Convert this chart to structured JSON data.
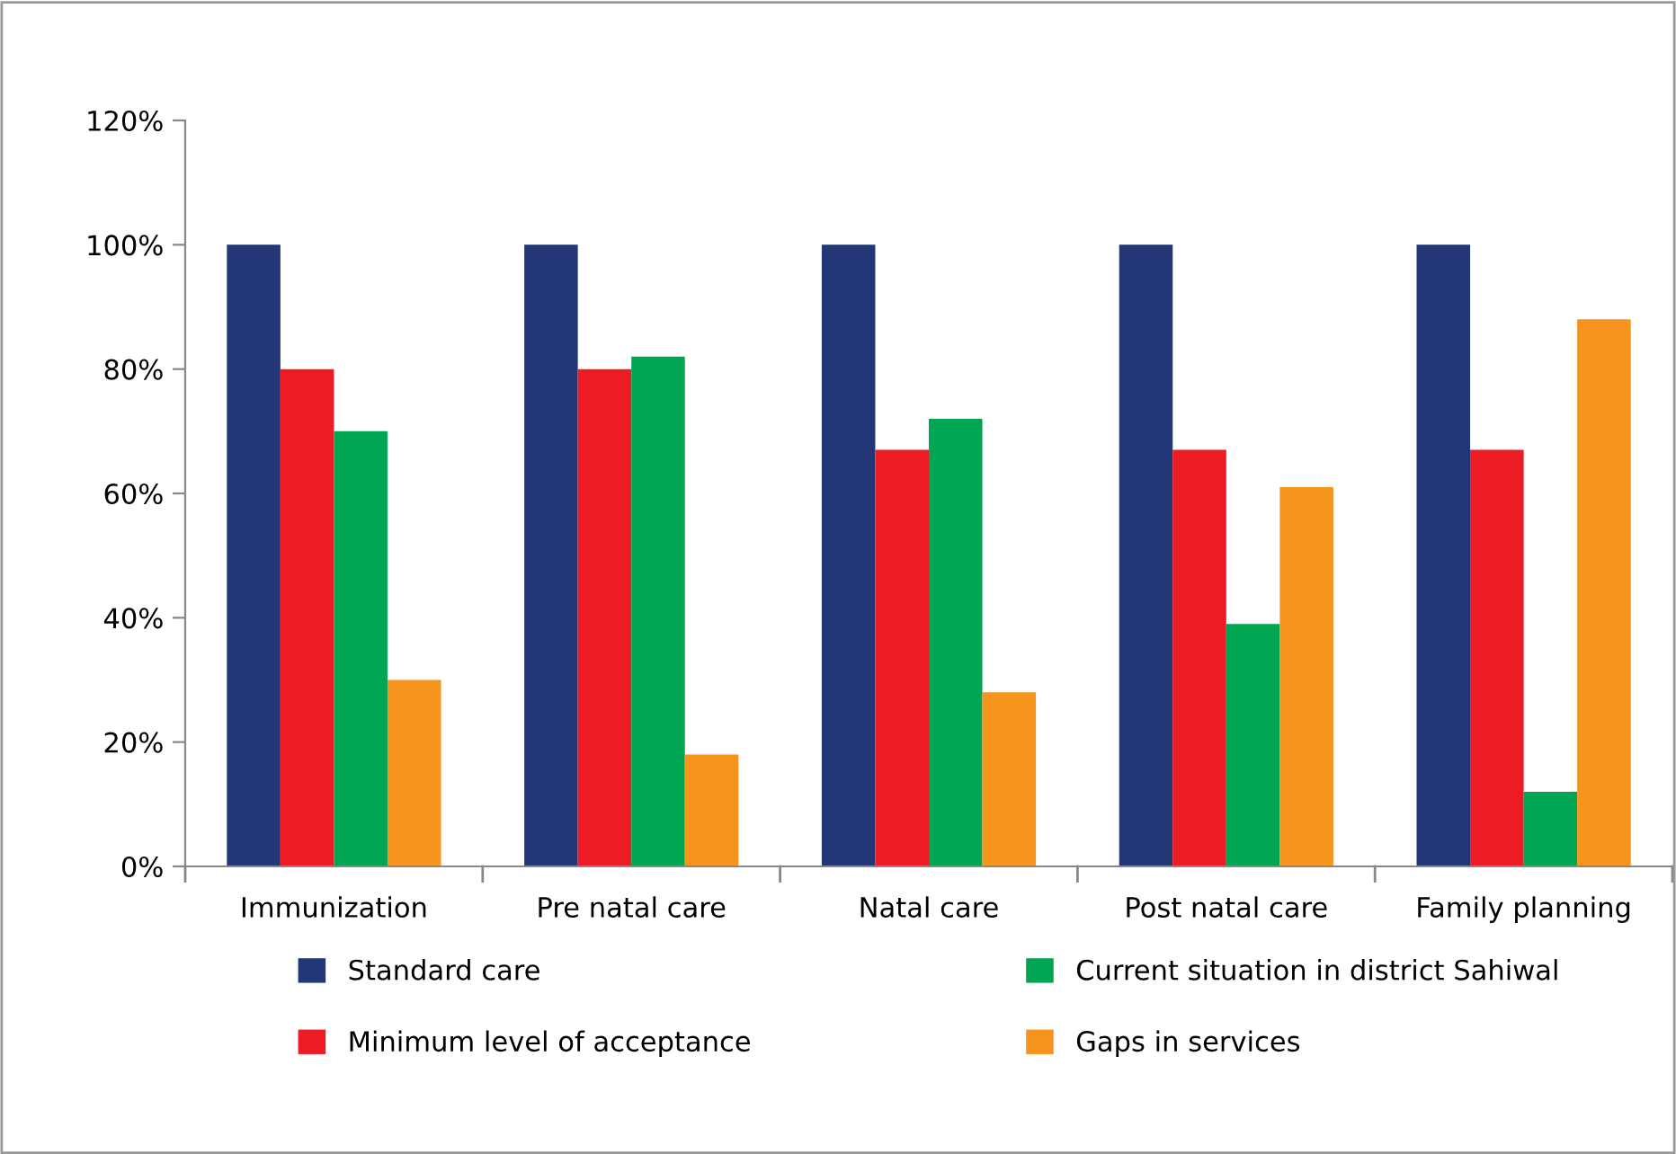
{
  "chart_data": {
    "type": "bar",
    "categories": [
      "Immunization",
      "Pre natal care",
      "Natal care",
      "Post natal care",
      "Family planning"
    ],
    "series": [
      {
        "name": "Standard care",
        "color": "#233777",
        "values": [
          100,
          100,
          100,
          100,
          100
        ]
      },
      {
        "name": "Minimum level of acceptance",
        "color": "#ed1c24",
        "values": [
          80,
          80,
          67,
          67,
          67
        ]
      },
      {
        "name": "Current situation in district Sahiwal",
        "color": "#00a651",
        "values": [
          70,
          82,
          72,
          39,
          12
        ]
      },
      {
        "name": "Gaps in services",
        "color": "#f7941d",
        "values": [
          30,
          18,
          28,
          61,
          88
        ]
      }
    ],
    "ylim": [
      0,
      120
    ],
    "yticks": [
      {
        "value": 0,
        "label": "0%"
      },
      {
        "value": 20,
        "label": "20%"
      },
      {
        "value": 40,
        "label": "40%"
      },
      {
        "value": 60,
        "label": "60%"
      },
      {
        "value": 80,
        "label": "80%"
      },
      {
        "value": 100,
        "label": "100%"
      },
      {
        "value": 120,
        "label": "120%"
      }
    ],
    "grid": false,
    "legend": "bottom"
  }
}
